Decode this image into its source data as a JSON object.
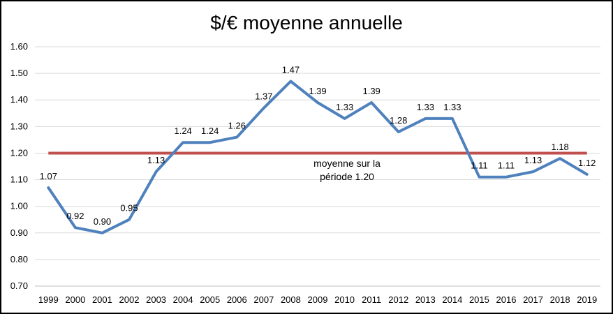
{
  "chart_data": {
    "type": "line",
    "title": "$/€ moyenne annuelle",
    "xlabel": "",
    "ylabel": "",
    "categories": [
      "1999",
      "2000",
      "2001",
      "2002",
      "2003",
      "2004",
      "2005",
      "2006",
      "2007",
      "2008",
      "2009",
      "2010",
      "2011",
      "2012",
      "2013",
      "2014",
      "2015",
      "2016",
      "2017",
      "2018",
      "2019"
    ],
    "series": [
      {
        "values": [
          1.07,
          0.92,
          0.9,
          0.95,
          1.13,
          1.24,
          1.24,
          1.26,
          1.37,
          1.47,
          1.39,
          1.33,
          1.39,
          1.28,
          1.33,
          1.33,
          1.11,
          1.11,
          1.13,
          1.18,
          1.12
        ],
        "data_labels": [
          "1.07",
          "0.92",
          "0.90",
          "0.95",
          "1.13",
          "1.24",
          "1.24",
          "1.26",
          "1.37",
          "1.47",
          "1.39",
          "1.33",
          "1.39",
          "1.28",
          "1.33",
          "1.33",
          "1.11",
          "1.11",
          "1.13",
          "1.18",
          "1.12"
        ],
        "color": "#4f81bd"
      }
    ],
    "reference_line": {
      "value": 1.2,
      "color": "#c0504d",
      "label_line1": "moyenne sur la",
      "label_line2": "période 1.20"
    },
    "ylim": [
      0.7,
      1.6
    ],
    "yticks": [
      "0.70",
      "0.80",
      "0.90",
      "1.00",
      "1.10",
      "1.20",
      "1.30",
      "1.40",
      "1.50",
      "1.60"
    ],
    "grid": true,
    "legend": "none"
  }
}
